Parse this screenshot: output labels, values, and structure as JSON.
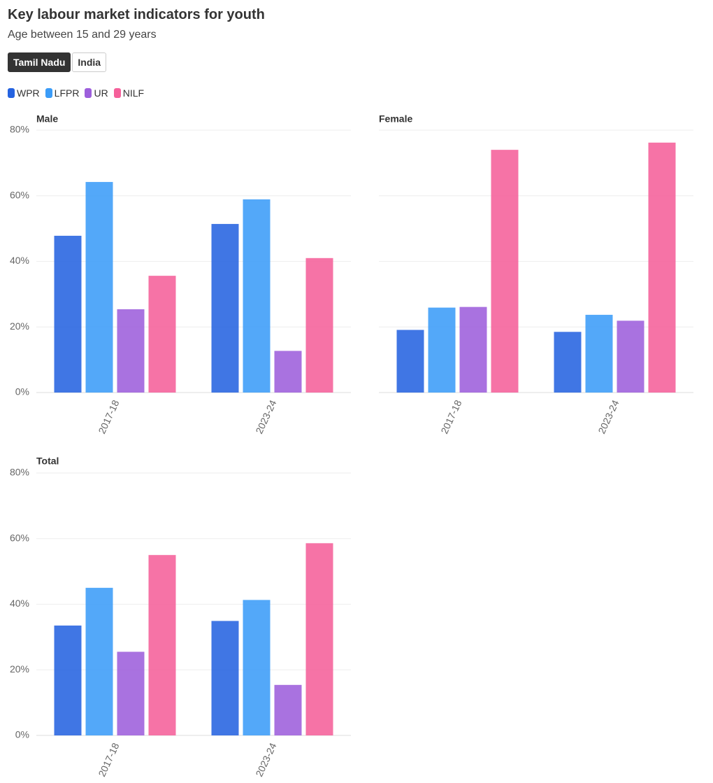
{
  "header": {
    "title": "Key labour market indicators for youth",
    "subtitle": "Age between 15 and 29 years"
  },
  "region_buttons": [
    {
      "label": "Tamil Nadu",
      "active": true
    },
    {
      "label": "India",
      "active": false
    }
  ],
  "legend": [
    {
      "label": "WPR",
      "color": "#2563e0"
    },
    {
      "label": "LFPR",
      "color": "#3b9cf8"
    },
    {
      "label": "UR",
      "color": "#9d5fdc"
    },
    {
      "label": "NILF",
      "color": "#f5609a"
    }
  ],
  "chart_data": {
    "type": "bar",
    "categories": [
      "2017-18",
      "2023-24"
    ],
    "series_names": [
      "WPR",
      "LFPR",
      "UR",
      "NILF"
    ],
    "y_ticks": [
      "0%",
      "20%",
      "40%",
      "60%",
      "80%"
    ],
    "ylim": [
      0,
      80
    ],
    "panels": [
      {
        "title": "Male",
        "series": [
          {
            "name": "WPR",
            "values": [
              47.8,
              51.4
            ]
          },
          {
            "name": "LFPR",
            "values": [
              64.2,
              58.9
            ]
          },
          {
            "name": "UR",
            "values": [
              25.4,
              12.7
            ]
          },
          {
            "name": "NILF",
            "values": [
              35.6,
              41.0
            ]
          }
        ]
      },
      {
        "title": "Female",
        "series": [
          {
            "name": "WPR",
            "values": [
              19.1,
              18.5
            ]
          },
          {
            "name": "LFPR",
            "values": [
              25.9,
              23.7
            ]
          },
          {
            "name": "UR",
            "values": [
              26.1,
              21.9
            ]
          },
          {
            "name": "NILF",
            "values": [
              74.0,
              76.2
            ]
          }
        ]
      },
      {
        "title": "Total",
        "series": [
          {
            "name": "WPR",
            "values": [
              33.5,
              34.9
            ]
          },
          {
            "name": "LFPR",
            "values": [
              45.0,
              41.3
            ]
          },
          {
            "name": "UR",
            "values": [
              25.5,
              15.4
            ]
          },
          {
            "name": "NILF",
            "values": [
              55.0,
              58.6
            ]
          }
        ]
      }
    ]
  }
}
